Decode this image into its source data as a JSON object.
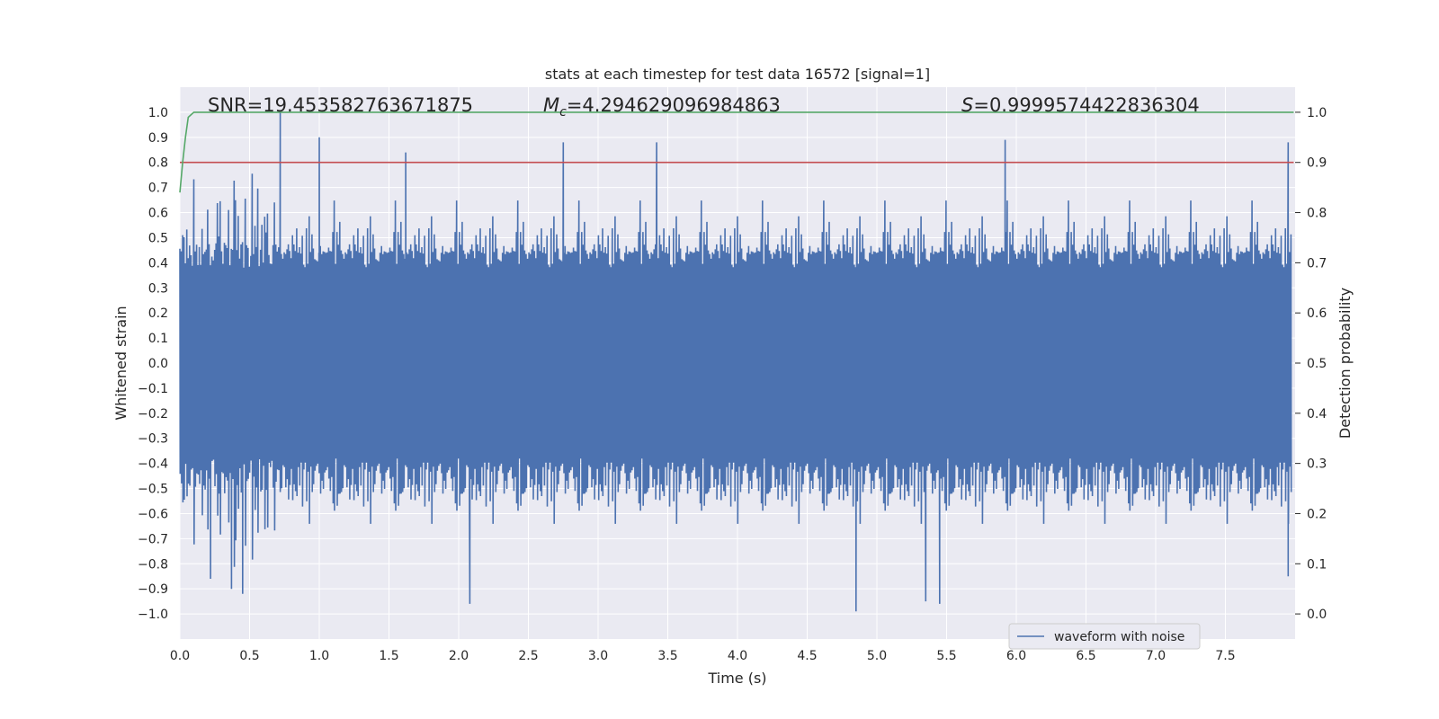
{
  "chart_data": {
    "type": "line",
    "title": "stats at each timestep for test data 16572 [signal=1]",
    "xlabel": "Time (s)",
    "ylabel": "Whitened strain",
    "y2label": "Detection probability",
    "xlim": [
      0.0,
      8.0
    ],
    "ylim": [
      -1.1,
      1.1
    ],
    "y2lim": [
      -0.05,
      1.05
    ],
    "x_ticks": [
      0.0,
      0.5,
      1.0,
      1.5,
      2.0,
      2.5,
      3.0,
      3.5,
      4.0,
      4.5,
      5.0,
      5.5,
      6.0,
      6.5,
      7.0,
      7.5
    ],
    "x_tick_labels": [
      "0.0",
      "0.5",
      "1.0",
      "1.5",
      "2.0",
      "2.5",
      "3.0",
      "3.5",
      "4.0",
      "4.5",
      "5.0",
      "5.5",
      "6.0",
      "6.5",
      "7.0",
      "7.5"
    ],
    "y_ticks": [
      1.0,
      0.9,
      0.8,
      0.7,
      0.6,
      0.5,
      0.4,
      0.3,
      0.2,
      0.1,
      0.0,
      -0.1,
      -0.2,
      -0.3,
      -0.4,
      -0.5,
      -0.6,
      -0.7,
      -0.8,
      -0.9,
      -1.0
    ],
    "y_tick_labels": [
      "1.0",
      "0.9",
      "0.8",
      "0.7",
      "0.6",
      "0.5",
      "0.4",
      "0.3",
      "0.2",
      "0.1",
      "0.0",
      "−0.1",
      "−0.2",
      "−0.3",
      "−0.4",
      "−0.5",
      "−0.6",
      "−0.7",
      "−0.8",
      "−0.9",
      "−1.0"
    ],
    "y2_ticks": [
      1.0,
      0.9,
      0.8,
      0.7,
      0.6,
      0.5,
      0.4,
      0.3,
      0.2,
      0.1,
      0.0
    ],
    "y2_tick_labels": [
      "1.0",
      "0.9",
      "0.8",
      "0.7",
      "0.6",
      "0.5",
      "0.4",
      "0.3",
      "0.2",
      "0.1",
      "0.0"
    ],
    "grid": true,
    "legend": {
      "position": "lower-right",
      "entries": [
        "waveform with noise"
      ]
    },
    "annotations": {
      "snr": "SNR=19.453582763671875",
      "mc": "=4.294629096984863",
      "mc_symbol": "M",
      "mc_sub": "c",
      "s": "=0.9999574422836304",
      "s_symbol": "S"
    },
    "series": [
      {
        "name": "waveform with noise",
        "axis": "left",
        "color": "#4c72b0",
        "description": "noisy whitened strain, 8 s sampled",
        "envelope_base": 0.38,
        "sample_count": 800,
        "spikes": [
          {
            "x": 0.72,
            "y": 1.0
          },
          {
            "x": 1.0,
            "y": 0.9
          },
          {
            "x": 1.62,
            "y": 0.84
          },
          {
            "x": 2.75,
            "y": 0.88
          },
          {
            "x": 3.42,
            "y": 0.88
          },
          {
            "x": 5.92,
            "y": 0.89
          },
          {
            "x": 7.95,
            "y": 0.88
          },
          {
            "x": 0.37,
            "y": -0.9
          },
          {
            "x": 0.45,
            "y": -0.92
          },
          {
            "x": 2.08,
            "y": -0.96
          },
          {
            "x": 4.85,
            "y": -0.99
          },
          {
            "x": 5.35,
            "y": -0.95
          },
          {
            "x": 5.45,
            "y": -0.96
          },
          {
            "x": 0.22,
            "y": -0.86
          },
          {
            "x": 7.95,
            "y": -0.85
          }
        ]
      },
      {
        "name": "detection probability",
        "axis": "right",
        "color": "#55a868",
        "x": [
          0.0,
          0.02,
          0.04,
          0.06,
          0.1,
          0.15,
          8.0
        ],
        "y": [
          0.84,
          0.9,
          0.95,
          0.99,
          1.0,
          1.0,
          1.0
        ]
      },
      {
        "name": "threshold",
        "axis": "right",
        "color": "#c44e52",
        "x": [
          0.0,
          8.0
        ],
        "y": [
          0.9,
          0.9
        ]
      }
    ]
  }
}
